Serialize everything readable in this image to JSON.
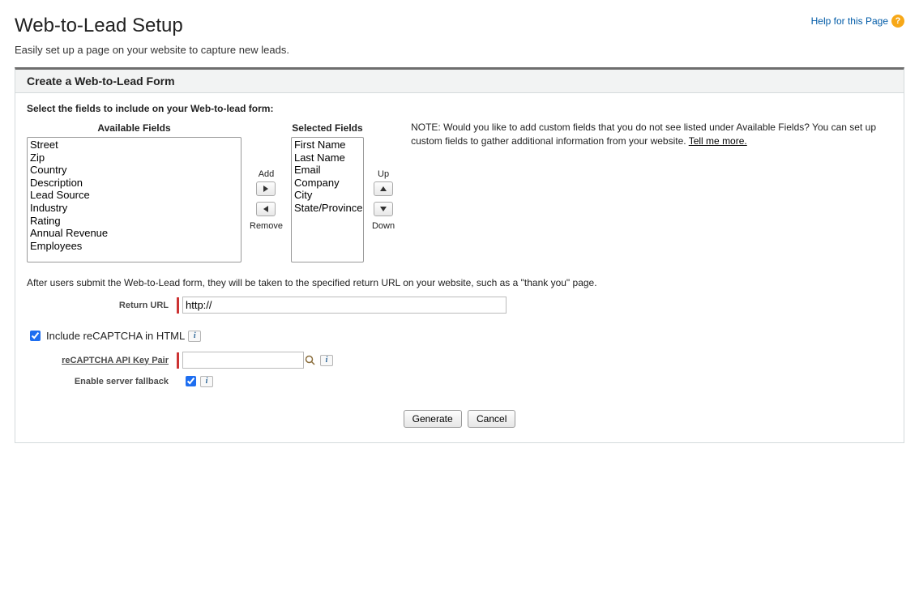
{
  "page": {
    "title": "Web-to-Lead Setup",
    "help_label": "Help for this Page",
    "subtitle": "Easily set up a page on your website to capture new leads."
  },
  "panel": {
    "header": "Create a Web-to-Lead Form",
    "instruction": "Select the fields to include on your Web-to-lead form:",
    "available_label": "Available Fields",
    "selected_label": "Selected Fields",
    "add_label": "Add",
    "remove_label": "Remove",
    "up_label": "Up",
    "down_label": "Down",
    "available_fields": [
      "Street",
      "Zip",
      "Country",
      "Description",
      "Lead Source",
      "Industry",
      "Rating",
      "Annual Revenue",
      "Employees"
    ],
    "selected_fields": [
      "First Name",
      "Last Name",
      "Email",
      "Company",
      "City",
      "State/Province"
    ],
    "note_prefix": "NOTE: Would you like to add custom fields that you do not see listed under Available Fields? You can set up custom fields to gather additional information from your website. ",
    "note_link": "Tell me more."
  },
  "return_section": {
    "after_text": "After users submit the Web-to-Lead form, they will be taken to the specified return URL on your website, such as a \"thank you\" page.",
    "label": "Return URL",
    "value": "http://"
  },
  "recaptcha": {
    "include_label": "Include reCAPTCHA in HTML",
    "include_checked": true,
    "api_label": "reCAPTCHA API Key Pair",
    "api_value": "",
    "fallback_label": "Enable server fallback",
    "fallback_checked": true
  },
  "buttons": {
    "generate": "Generate",
    "cancel": "Cancel"
  },
  "colors": {
    "link": "#015ba7",
    "required": "#c23934"
  }
}
